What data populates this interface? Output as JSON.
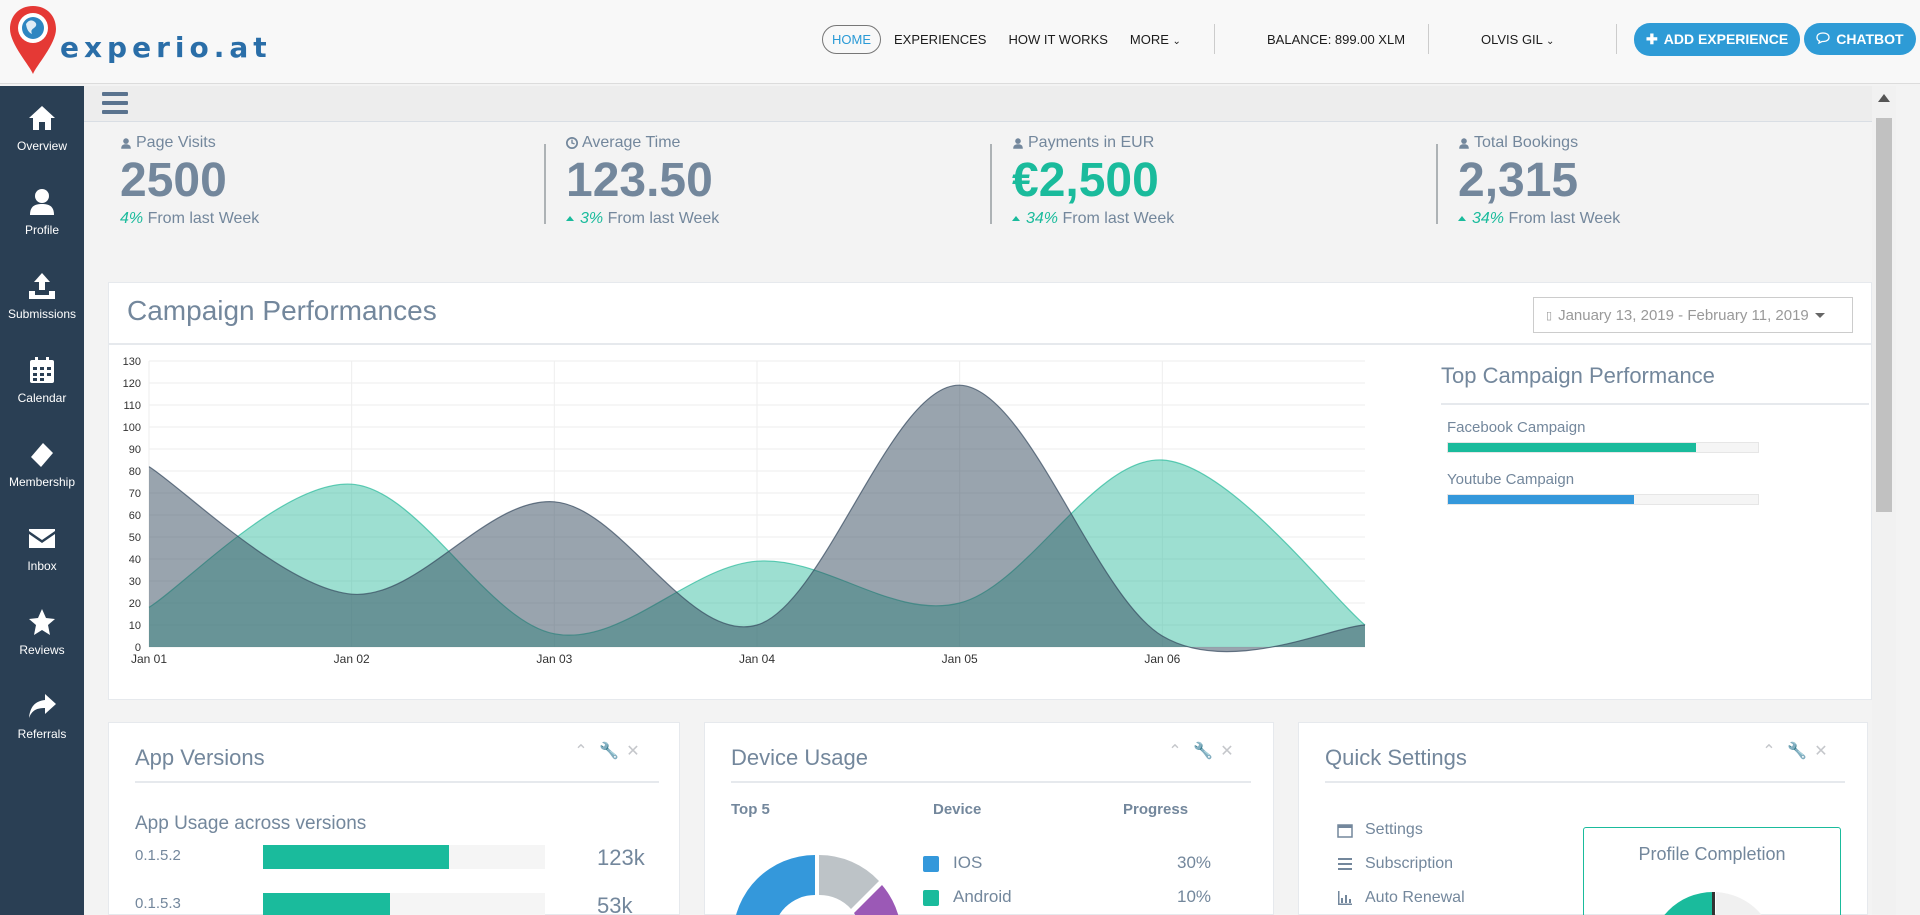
{
  "brand": {
    "name": "experio.at"
  },
  "nav": {
    "home": "HOME",
    "experiences": "EXPERIENCES",
    "how_it_works": "HOW IT WORKS",
    "more": "MORE",
    "balance": "BALANCE: 899.00 XLM",
    "user": "OLVIS GIL",
    "add_experience": "ADD EXPERIENCE",
    "chatbot": "CHATBOT"
  },
  "sidebar": {
    "items": [
      {
        "label": "Overview",
        "icon": "home-icon"
      },
      {
        "label": "Profile",
        "icon": "user-icon"
      },
      {
        "label": "Submissions",
        "icon": "upload-icon"
      },
      {
        "label": "Calendar",
        "icon": "calendar-icon"
      },
      {
        "label": "Membership",
        "icon": "ticket-icon"
      },
      {
        "label": "Inbox",
        "icon": "envelope-icon"
      },
      {
        "label": "Reviews",
        "icon": "star-icon"
      },
      {
        "label": "Referrals",
        "icon": "share-icon"
      }
    ]
  },
  "stats": [
    {
      "title": "Page Visits",
      "value": "2500",
      "change": "4%",
      "suffix": "From last Week",
      "arrow": false,
      "highlight": false,
      "icon": "user-icon"
    },
    {
      "title": "Average Time",
      "value": "123.50",
      "change": "3%",
      "suffix": "From last Week",
      "arrow": true,
      "highlight": false,
      "icon": "clock-icon"
    },
    {
      "title": "Payments in EUR",
      "value": "€2,500",
      "change": "34%",
      "suffix": "From last Week",
      "arrow": true,
      "highlight": true,
      "icon": "user-icon"
    },
    {
      "title": "Total Bookings",
      "value": "2,315",
      "change": "34%",
      "suffix": "From last Week",
      "arrow": true,
      "highlight": false,
      "icon": "user-icon"
    }
  ],
  "campaign": {
    "title": "Campaign Performances",
    "date_range": "January 13, 2019 - February 11, 2019",
    "top_title": "Top Campaign Performance",
    "top_items": [
      {
        "label": "Facebook Campaign",
        "progress": 0.8,
        "color": "#1abb9c"
      },
      {
        "label": "Youtube Campaign",
        "progress": 0.6,
        "color": "#3498db"
      }
    ]
  },
  "chart_data": {
    "type": "area",
    "x": [
      "Jan 01",
      "Jan 02",
      "Jan 03",
      "Jan 04",
      "Jan 05",
      "Jan 06"
    ],
    "xlabel": "",
    "ylabel": "",
    "ylim": [
      0,
      130
    ],
    "yticks": [
      0,
      10,
      20,
      30,
      40,
      50,
      60,
      70,
      80,
      90,
      100,
      110,
      120,
      130
    ],
    "grid": true,
    "series": [
      {
        "x": [
          0,
          1,
          2,
          3,
          4,
          5,
          6
        ],
        "values": [
          18,
          74,
          6,
          39,
          20,
          85,
          10
        ],
        "color": "#26B99A"
      },
      {
        "x": [
          0,
          1,
          2,
          3,
          4,
          5,
          6
        ],
        "values": [
          82,
          24,
          66,
          10,
          119,
          5,
          10
        ],
        "color": "#34495E"
      }
    ]
  },
  "app_versions": {
    "title": "App Versions",
    "subtitle": "App Usage across versions",
    "rows": [
      {
        "version": "0.1.5.2",
        "progress": 0.66,
        "count": "123k"
      },
      {
        "version": "0.1.5.3",
        "progress": 0.45,
        "count": "53k"
      }
    ]
  },
  "device_usage": {
    "title": "Device Usage",
    "headers": {
      "top": "Top 5",
      "device": "Device",
      "progress": "Progress"
    },
    "rows": [
      {
        "device": "IOS",
        "percent": "30%",
        "color": "#3498db"
      },
      {
        "device": "Android",
        "percent": "10%",
        "color": "#1abb9c"
      }
    ]
  },
  "quick_settings": {
    "title": "Quick Settings",
    "items": [
      {
        "label": "Settings",
        "icon": "calendar-icon"
      },
      {
        "label": "Subscription",
        "icon": "list-icon"
      },
      {
        "label": "Auto Renewal",
        "icon": "bar-chart-icon"
      }
    ],
    "profile_completion": "Profile Completion"
  }
}
